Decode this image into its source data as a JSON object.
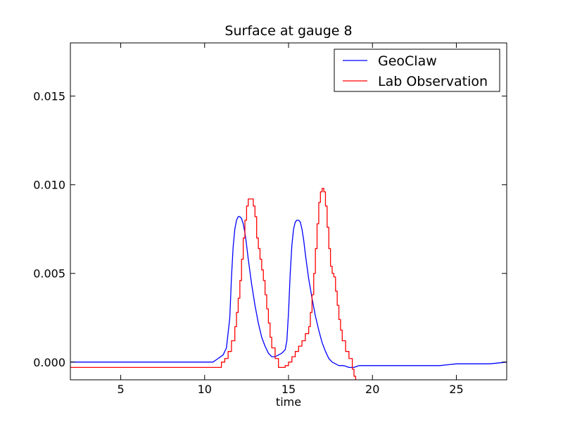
{
  "chart_data": {
    "type": "line",
    "title": "Surface at gauge 8",
    "xlabel": "time",
    "ylabel": "",
    "xlim": [
      2,
      28
    ],
    "ylim": [
      -0.001,
      0.018
    ],
    "xticks": [
      5,
      10,
      15,
      20,
      25
    ],
    "xtick_labels": [
      "5",
      "10",
      "15",
      "20",
      "25"
    ],
    "yticks": [
      0.0,
      0.005,
      0.01,
      0.015
    ],
    "ytick_labels": [
      "0.000",
      "0.005",
      "0.010",
      "0.015"
    ],
    "grid": false,
    "legend_position": "top-right",
    "series": [
      {
        "name": "GeoClaw",
        "color": "#0000ff",
        "style": "smooth",
        "x": [
          2,
          10.5,
          10.8,
          11.1,
          11.3,
          11.5,
          11.6,
          11.7,
          11.8,
          11.9,
          12.0,
          12.1,
          12.2,
          12.3,
          12.4,
          12.5,
          12.6,
          12.8,
          13.0,
          13.2,
          13.4,
          13.6,
          13.8,
          14.0,
          14.2,
          14.4,
          14.6,
          14.8,
          14.9,
          15.0,
          15.1,
          15.2,
          15.3,
          15.4,
          15.5,
          15.6,
          15.7,
          15.8,
          15.9,
          16.0,
          16.2,
          16.4,
          16.6,
          16.8,
          17.0,
          17.2,
          17.4,
          17.6,
          17.8,
          18.0,
          18.3,
          18.6,
          18.9,
          19.2,
          19.5,
          20.0,
          21.0,
          22.0,
          23.0,
          24.0,
          25.0,
          26.0,
          27.0,
          28.0
        ],
        "y": [
          0.0,
          0.0,
          0.0002,
          0.0004,
          0.0008,
          0.0025,
          0.0048,
          0.0065,
          0.0075,
          0.008,
          0.0082,
          0.0082,
          0.0081,
          0.0078,
          0.0073,
          0.0066,
          0.0058,
          0.0044,
          0.0032,
          0.0022,
          0.0014,
          0.0009,
          0.0005,
          0.0003,
          0.0003,
          0.0004,
          0.0005,
          0.0007,
          0.0012,
          0.0028,
          0.005,
          0.0066,
          0.0075,
          0.0079,
          0.008,
          0.008,
          0.0079,
          0.0075,
          0.0069,
          0.0061,
          0.0047,
          0.0036,
          0.0026,
          0.0018,
          0.0011,
          0.0006,
          0.0002,
          0.0,
          -0.0001,
          -0.0002,
          -0.0002,
          -0.0003,
          -0.0003,
          -0.0002,
          -0.0002,
          -0.0002,
          -0.0002,
          -0.0002,
          -0.0002,
          -0.0002,
          -0.0001,
          -0.0001,
          -0.0001,
          0.0
        ]
      },
      {
        "name": "Lab Observation",
        "color": "#ff0000",
        "style": "step",
        "x": [
          2,
          10.9,
          11.0,
          11.2,
          11.4,
          11.6,
          11.8,
          11.9,
          12.0,
          12.1,
          12.2,
          12.3,
          12.4,
          12.5,
          12.6,
          12.8,
          12.9,
          13.0,
          13.1,
          13.2,
          13.3,
          13.4,
          13.5,
          13.6,
          13.7,
          13.8,
          13.9,
          14.0,
          14.2,
          14.4,
          14.6,
          14.8,
          15.0,
          15.2,
          15.4,
          15.6,
          15.8,
          16.0,
          16.2,
          16.3,
          16.4,
          16.5,
          16.6,
          16.7,
          16.8,
          16.9,
          17.0,
          17.1,
          17.2,
          17.3,
          17.4,
          17.5,
          17.6,
          17.7,
          17.8,
          17.9,
          18.0,
          18.1,
          18.2,
          18.4,
          18.6,
          18.8,
          18.9,
          19.0
        ],
        "y": [
          -0.0003,
          -0.0003,
          0.0,
          0.0002,
          0.0006,
          0.0012,
          0.002,
          0.0028,
          0.0036,
          0.0046,
          0.0058,
          0.007,
          0.008,
          0.0088,
          0.0092,
          0.0092,
          0.0088,
          0.0082,
          0.007,
          0.0064,
          0.0058,
          0.0052,
          0.0046,
          0.0038,
          0.003,
          0.0022,
          0.0014,
          0.0008,
          0.0002,
          -0.0003,
          -0.0003,
          -0.0002,
          0.0,
          0.0003,
          0.0006,
          0.0009,
          0.0012,
          0.0016,
          0.002,
          0.0028,
          0.0038,
          0.005,
          0.0064,
          0.0078,
          0.009,
          0.0096,
          0.0098,
          0.0096,
          0.0088,
          0.0076,
          0.0064,
          0.0054,
          0.005,
          0.0048,
          0.004,
          0.0032,
          0.0024,
          0.0018,
          0.0012,
          0.0006,
          0.0002,
          -0.0004,
          -0.0008,
          -0.001
        ]
      }
    ]
  }
}
